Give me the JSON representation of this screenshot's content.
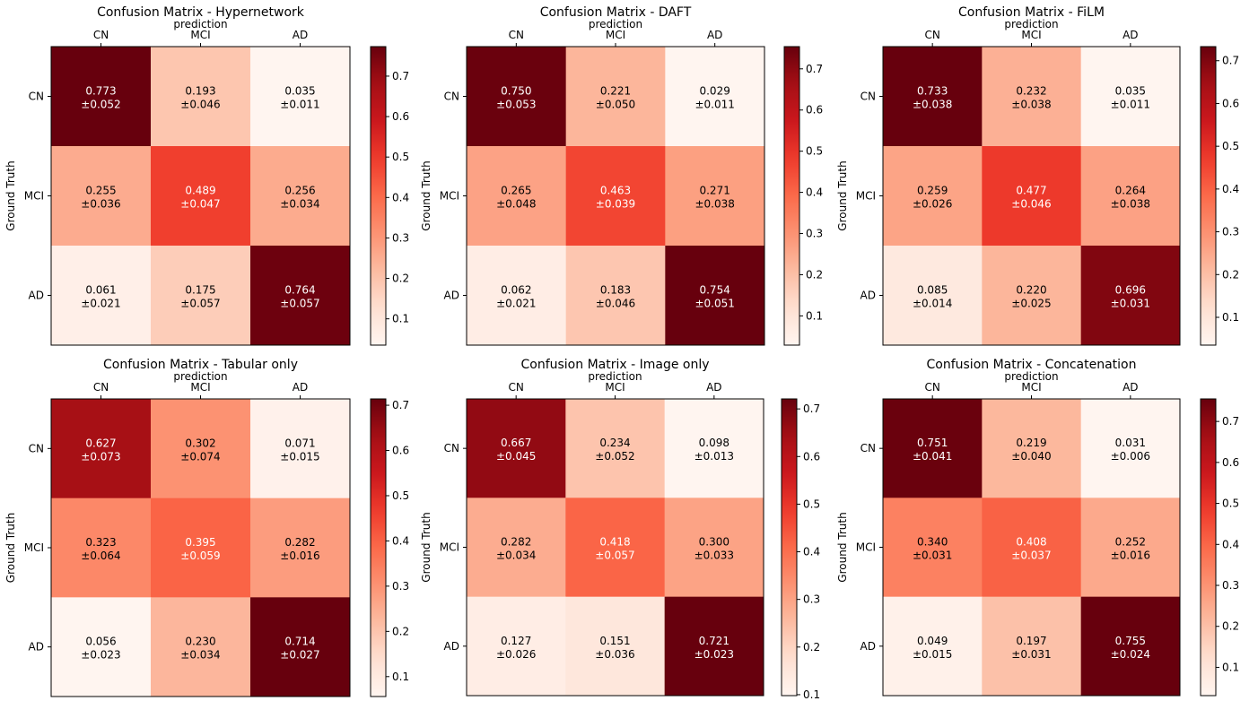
{
  "figure": {
    "background": "#ffffff",
    "colormap": "Reds"
  },
  "chart_data": [
    {
      "type": "heatmap",
      "title": "Confusion Matrix - Hypernetwork",
      "xlabel": "prediction",
      "ylabel": "Ground Truth",
      "x_categories": [
        "CN",
        "MCI",
        "AD"
      ],
      "y_categories": [
        "CN",
        "MCI",
        "AD"
      ],
      "values": [
        [
          0.773,
          0.193,
          0.035
        ],
        [
          0.255,
          0.489,
          0.256
        ],
        [
          0.061,
          0.175,
          0.764
        ]
      ],
      "std": [
        [
          0.052,
          0.046,
          0.011
        ],
        [
          0.036,
          0.047,
          0.034
        ],
        [
          0.021,
          0.057,
          0.057
        ]
      ],
      "cell_labels": [
        [
          "0.773",
          "0.193",
          "0.035"
        ],
        [
          "0.255",
          "0.489",
          "0.256"
        ],
        [
          "0.061",
          "0.175",
          "0.764"
        ]
      ],
      "std_labels": [
        [
          "±0.052",
          "±0.046",
          "±0.011"
        ],
        [
          "±0.036",
          "±0.047",
          "±0.034"
        ],
        [
          "±0.021",
          "±0.057",
          "±0.057"
        ]
      ],
      "colorbar": {
        "min": 0.035,
        "max": 0.773,
        "ticks": [
          "0.1",
          "0.2",
          "0.3",
          "0.4",
          "0.5",
          "0.6",
          "0.7"
        ]
      }
    },
    {
      "type": "heatmap",
      "title": "Confusion Matrix - DAFT",
      "xlabel": "prediction",
      "ylabel": "Ground Truth",
      "x_categories": [
        "CN",
        "MCI",
        "AD"
      ],
      "y_categories": [
        "CN",
        "MCI",
        "AD"
      ],
      "values": [
        [
          0.75,
          0.221,
          0.029
        ],
        [
          0.265,
          0.463,
          0.271
        ],
        [
          0.062,
          0.183,
          0.754
        ]
      ],
      "std": [
        [
          0.053,
          0.05,
          0.011
        ],
        [
          0.048,
          0.039,
          0.038
        ],
        [
          0.021,
          0.046,
          0.051
        ]
      ],
      "cell_labels": [
        [
          "0.750",
          "0.221",
          "0.029"
        ],
        [
          "0.265",
          "0.463",
          "0.271"
        ],
        [
          "0.062",
          "0.183",
          "0.754"
        ]
      ],
      "std_labels": [
        [
          "±0.053",
          "±0.050",
          "±0.011"
        ],
        [
          "±0.048",
          "±0.039",
          "±0.038"
        ],
        [
          "±0.021",
          "±0.046",
          "±0.051"
        ]
      ],
      "colorbar": {
        "min": 0.029,
        "max": 0.754,
        "ticks": [
          "0.1",
          "0.2",
          "0.3",
          "0.4",
          "0.5",
          "0.6",
          "0.7"
        ]
      }
    },
    {
      "type": "heatmap",
      "title": "Confusion Matrix - FiLM",
      "xlabel": "prediction",
      "ylabel": "Ground Truth",
      "x_categories": [
        "CN",
        "MCI",
        "AD"
      ],
      "y_categories": [
        "CN",
        "MCI",
        "AD"
      ],
      "values": [
        [
          0.733,
          0.232,
          0.035
        ],
        [
          0.259,
          0.477,
          0.264
        ],
        [
          0.085,
          0.22,
          0.696
        ]
      ],
      "std": [
        [
          0.038,
          0.038,
          0.011
        ],
        [
          0.026,
          0.046,
          0.038
        ],
        [
          0.014,
          0.025,
          0.031
        ]
      ],
      "cell_labels": [
        [
          "0.733",
          "0.232",
          "0.035"
        ],
        [
          "0.259",
          "0.477",
          "0.264"
        ],
        [
          "0.085",
          "0.220",
          "0.696"
        ]
      ],
      "std_labels": [
        [
          "±0.038",
          "±0.038",
          "±0.011"
        ],
        [
          "±0.026",
          "±0.046",
          "±0.038"
        ],
        [
          "±0.014",
          "±0.025",
          "±0.031"
        ]
      ],
      "colorbar": {
        "min": 0.035,
        "max": 0.733,
        "ticks": [
          "0.1",
          "0.2",
          "0.3",
          "0.4",
          "0.5",
          "0.6",
          "0.7"
        ]
      }
    },
    {
      "type": "heatmap",
      "title": "Confusion Matrix - Tabular only",
      "xlabel": "prediction",
      "ylabel": "Ground Truth",
      "x_categories": [
        "CN",
        "MCI",
        "AD"
      ],
      "y_categories": [
        "CN",
        "MCI",
        "AD"
      ],
      "values": [
        [
          0.627,
          0.302,
          0.071
        ],
        [
          0.323,
          0.395,
          0.282
        ],
        [
          0.056,
          0.23,
          0.714
        ]
      ],
      "std": [
        [
          0.073,
          0.074,
          0.015
        ],
        [
          0.064,
          0.059,
          0.016
        ],
        [
          0.023,
          0.034,
          0.027
        ]
      ],
      "cell_labels": [
        [
          "0.627",
          "0.302",
          "0.071"
        ],
        [
          "0.323",
          "0.395",
          "0.282"
        ],
        [
          "0.056",
          "0.230",
          "0.714"
        ]
      ],
      "std_labels": [
        [
          "±0.073",
          "±0.074",
          "±0.015"
        ],
        [
          "±0.064",
          "±0.059",
          "±0.016"
        ],
        [
          "±0.023",
          "±0.034",
          "±0.027"
        ]
      ],
      "colorbar": {
        "min": 0.056,
        "max": 0.714,
        "ticks": [
          "0.1",
          "0.2",
          "0.3",
          "0.4",
          "0.5",
          "0.6",
          "0.7"
        ]
      }
    },
    {
      "type": "heatmap",
      "title": "Confusion Matrix - Image only",
      "xlabel": "prediction",
      "ylabel": "Ground Truth",
      "x_categories": [
        "CN",
        "MCI",
        "AD"
      ],
      "y_categories": [
        "CN",
        "MCI",
        "AD"
      ],
      "values": [
        [
          0.667,
          0.234,
          0.098
        ],
        [
          0.282,
          0.418,
          0.3
        ],
        [
          0.127,
          0.151,
          0.721
        ]
      ],
      "std": [
        [
          0.045,
          0.052,
          0.013
        ],
        [
          0.034,
          0.057,
          0.033
        ],
        [
          0.026,
          0.036,
          0.023
        ]
      ],
      "cell_labels": [
        [
          "0.667",
          "0.234",
          "0.098"
        ],
        [
          "0.282",
          "0.418",
          "0.300"
        ],
        [
          "0.127",
          "0.151",
          "0.721"
        ]
      ],
      "std_labels": [
        [
          "±0.045",
          "±0.052",
          "±0.013"
        ],
        [
          "±0.034",
          "±0.057",
          "±0.033"
        ],
        [
          "±0.026",
          "±0.036",
          "±0.023"
        ]
      ],
      "colorbar": {
        "min": 0.098,
        "max": 0.721,
        "ticks": [
          "0.1",
          "0.2",
          "0.3",
          "0.4",
          "0.5",
          "0.6",
          "0.7"
        ]
      }
    },
    {
      "type": "heatmap",
      "title": "Confusion Matrix - Concatenation",
      "xlabel": "prediction",
      "ylabel": "Ground Truth",
      "x_categories": [
        "CN",
        "MCI",
        "AD"
      ],
      "y_categories": [
        "CN",
        "MCI",
        "AD"
      ],
      "values": [
        [
          0.751,
          0.219,
          0.031
        ],
        [
          0.34,
          0.408,
          0.252
        ],
        [
          0.049,
          0.197,
          0.755
        ]
      ],
      "std": [
        [
          0.041,
          0.04,
          0.006
        ],
        [
          0.031,
          0.037,
          0.016
        ],
        [
          0.015,
          0.031,
          0.024
        ]
      ],
      "cell_labels": [
        [
          "0.751",
          "0.219",
          "0.031"
        ],
        [
          "0.340",
          "0.408",
          "0.252"
        ],
        [
          "0.049",
          "0.197",
          "0.755"
        ]
      ],
      "std_labels": [
        [
          "±0.041",
          "±0.040",
          "±0.006"
        ],
        [
          "±0.031",
          "±0.037",
          "±0.016"
        ],
        [
          "±0.015",
          "±0.031",
          "±0.024"
        ]
      ],
      "colorbar": {
        "min": 0.031,
        "max": 0.755,
        "ticks": [
          "0.1",
          "0.2",
          "0.3",
          "0.4",
          "0.5",
          "0.6",
          "0.7"
        ]
      }
    }
  ]
}
